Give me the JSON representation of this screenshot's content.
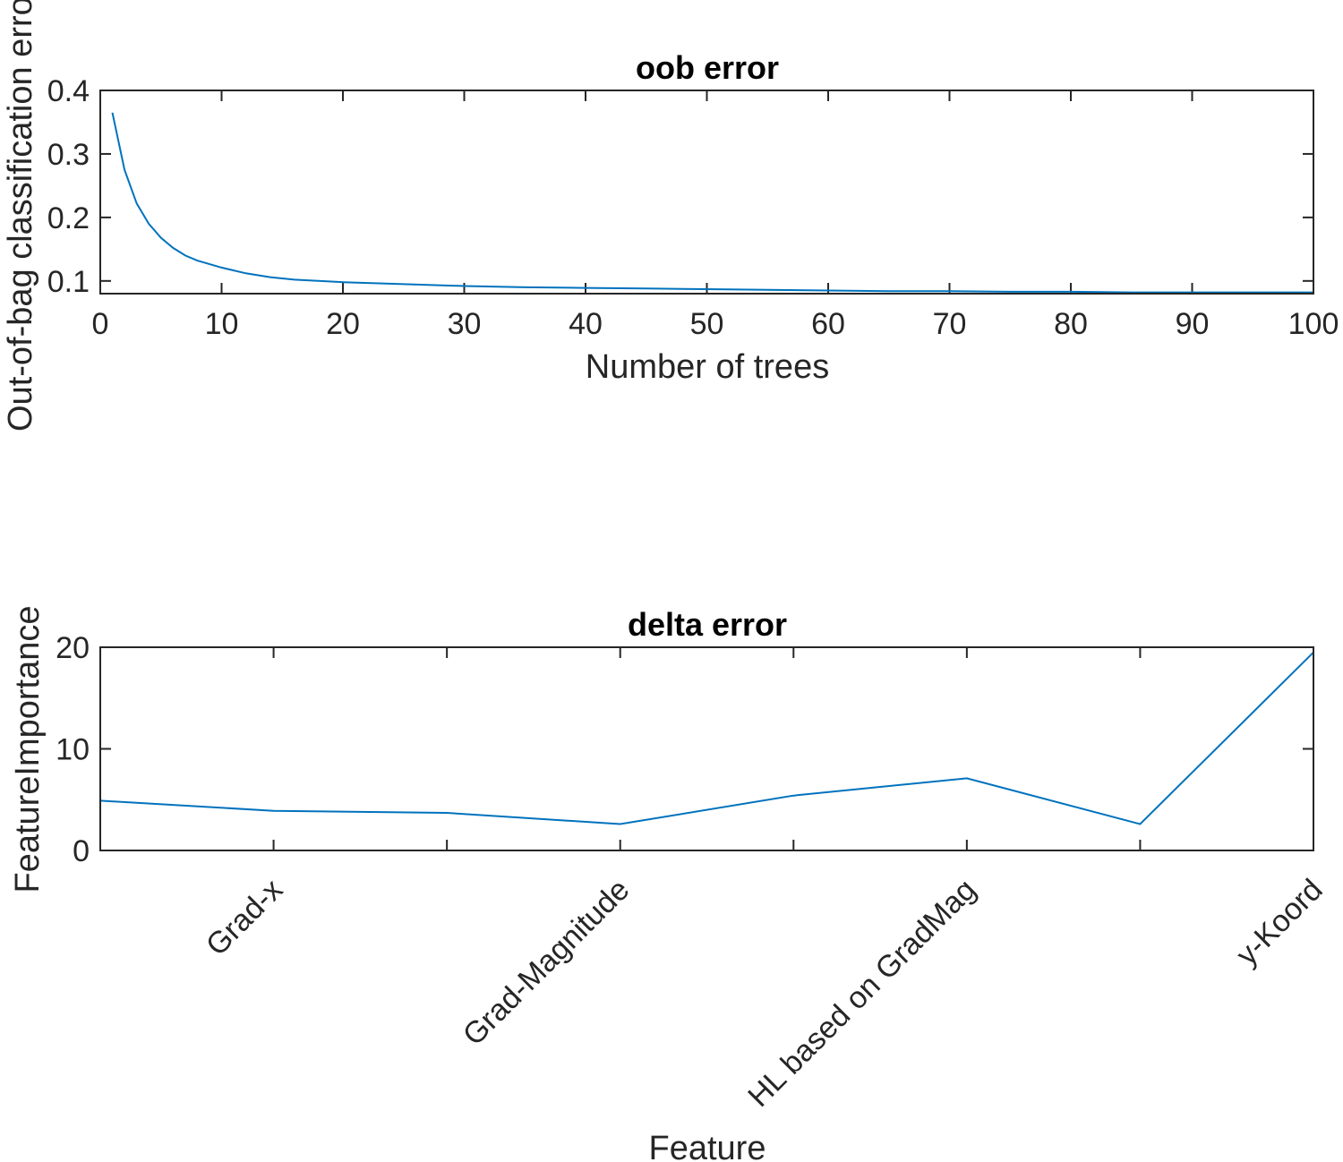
{
  "chart_data": [
    {
      "type": "line",
      "title": "oob error",
      "xlabel": "Number of trees",
      "ylabel": "Out-of-bag classification error",
      "xlim": [
        0,
        100
      ],
      "ylim": [
        0.08,
        0.4
      ],
      "xticks": [
        0,
        10,
        20,
        30,
        40,
        50,
        60,
        70,
        80,
        90,
        100
      ],
      "xtick_labels": [
        "0",
        "10",
        "20",
        "30",
        "40",
        "50",
        "60",
        "70",
        "80",
        "90",
        "100"
      ],
      "yticks": [
        0.1,
        0.2,
        0.3,
        0.4
      ],
      "ytick_labels": [
        "0.1",
        "0.2",
        "0.3",
        "0.4"
      ],
      "grid": false,
      "series_color": "#0072BD",
      "series": [
        {
          "x": [
            1,
            2,
            3,
            4,
            5,
            6,
            7,
            8,
            10,
            12,
            14,
            16,
            20,
            25,
            30,
            35,
            40,
            45,
            50,
            55,
            60,
            65,
            70,
            75,
            80,
            85,
            90,
            95,
            100
          ],
          "values": [
            0.365,
            0.275,
            0.222,
            0.19,
            0.168,
            0.152,
            0.14,
            0.132,
            0.121,
            0.112,
            0.106,
            0.102,
            0.098,
            0.095,
            0.092,
            0.09,
            0.089,
            0.088,
            0.087,
            0.086,
            0.085,
            0.084,
            0.084,
            0.083,
            0.083,
            0.082,
            0.082,
            0.082,
            0.082
          ]
        }
      ]
    },
    {
      "type": "line",
      "title": "delta error",
      "xlabel": "Feature",
      "ylabel": "FeatureImportance",
      "xlim": [
        1,
        8
      ],
      "ylim": [
        0,
        20
      ],
      "yticks": [
        0,
        10,
        20
      ],
      "ytick_labels": [
        "0",
        "10",
        "20"
      ],
      "xticks": [
        2,
        3,
        4,
        5,
        6,
        7,
        8
      ],
      "xtick_labels": [
        {
          "x": 2,
          "label": "Grad-x"
        },
        {
          "x": 4,
          "label": "Grad-Magnitude"
        },
        {
          "x": 6,
          "label": "HL based on GradMag"
        },
        {
          "x": 8,
          "label": "y-Koord"
        }
      ],
      "grid": false,
      "series_color": "#0072BD",
      "series": [
        {
          "x": [
            1,
            2,
            3,
            4,
            5,
            6,
            7,
            8
          ],
          "values": [
            4.9,
            3.9,
            3.7,
            2.6,
            5.4,
            7.1,
            2.6,
            19.5
          ]
        }
      ]
    }
  ]
}
